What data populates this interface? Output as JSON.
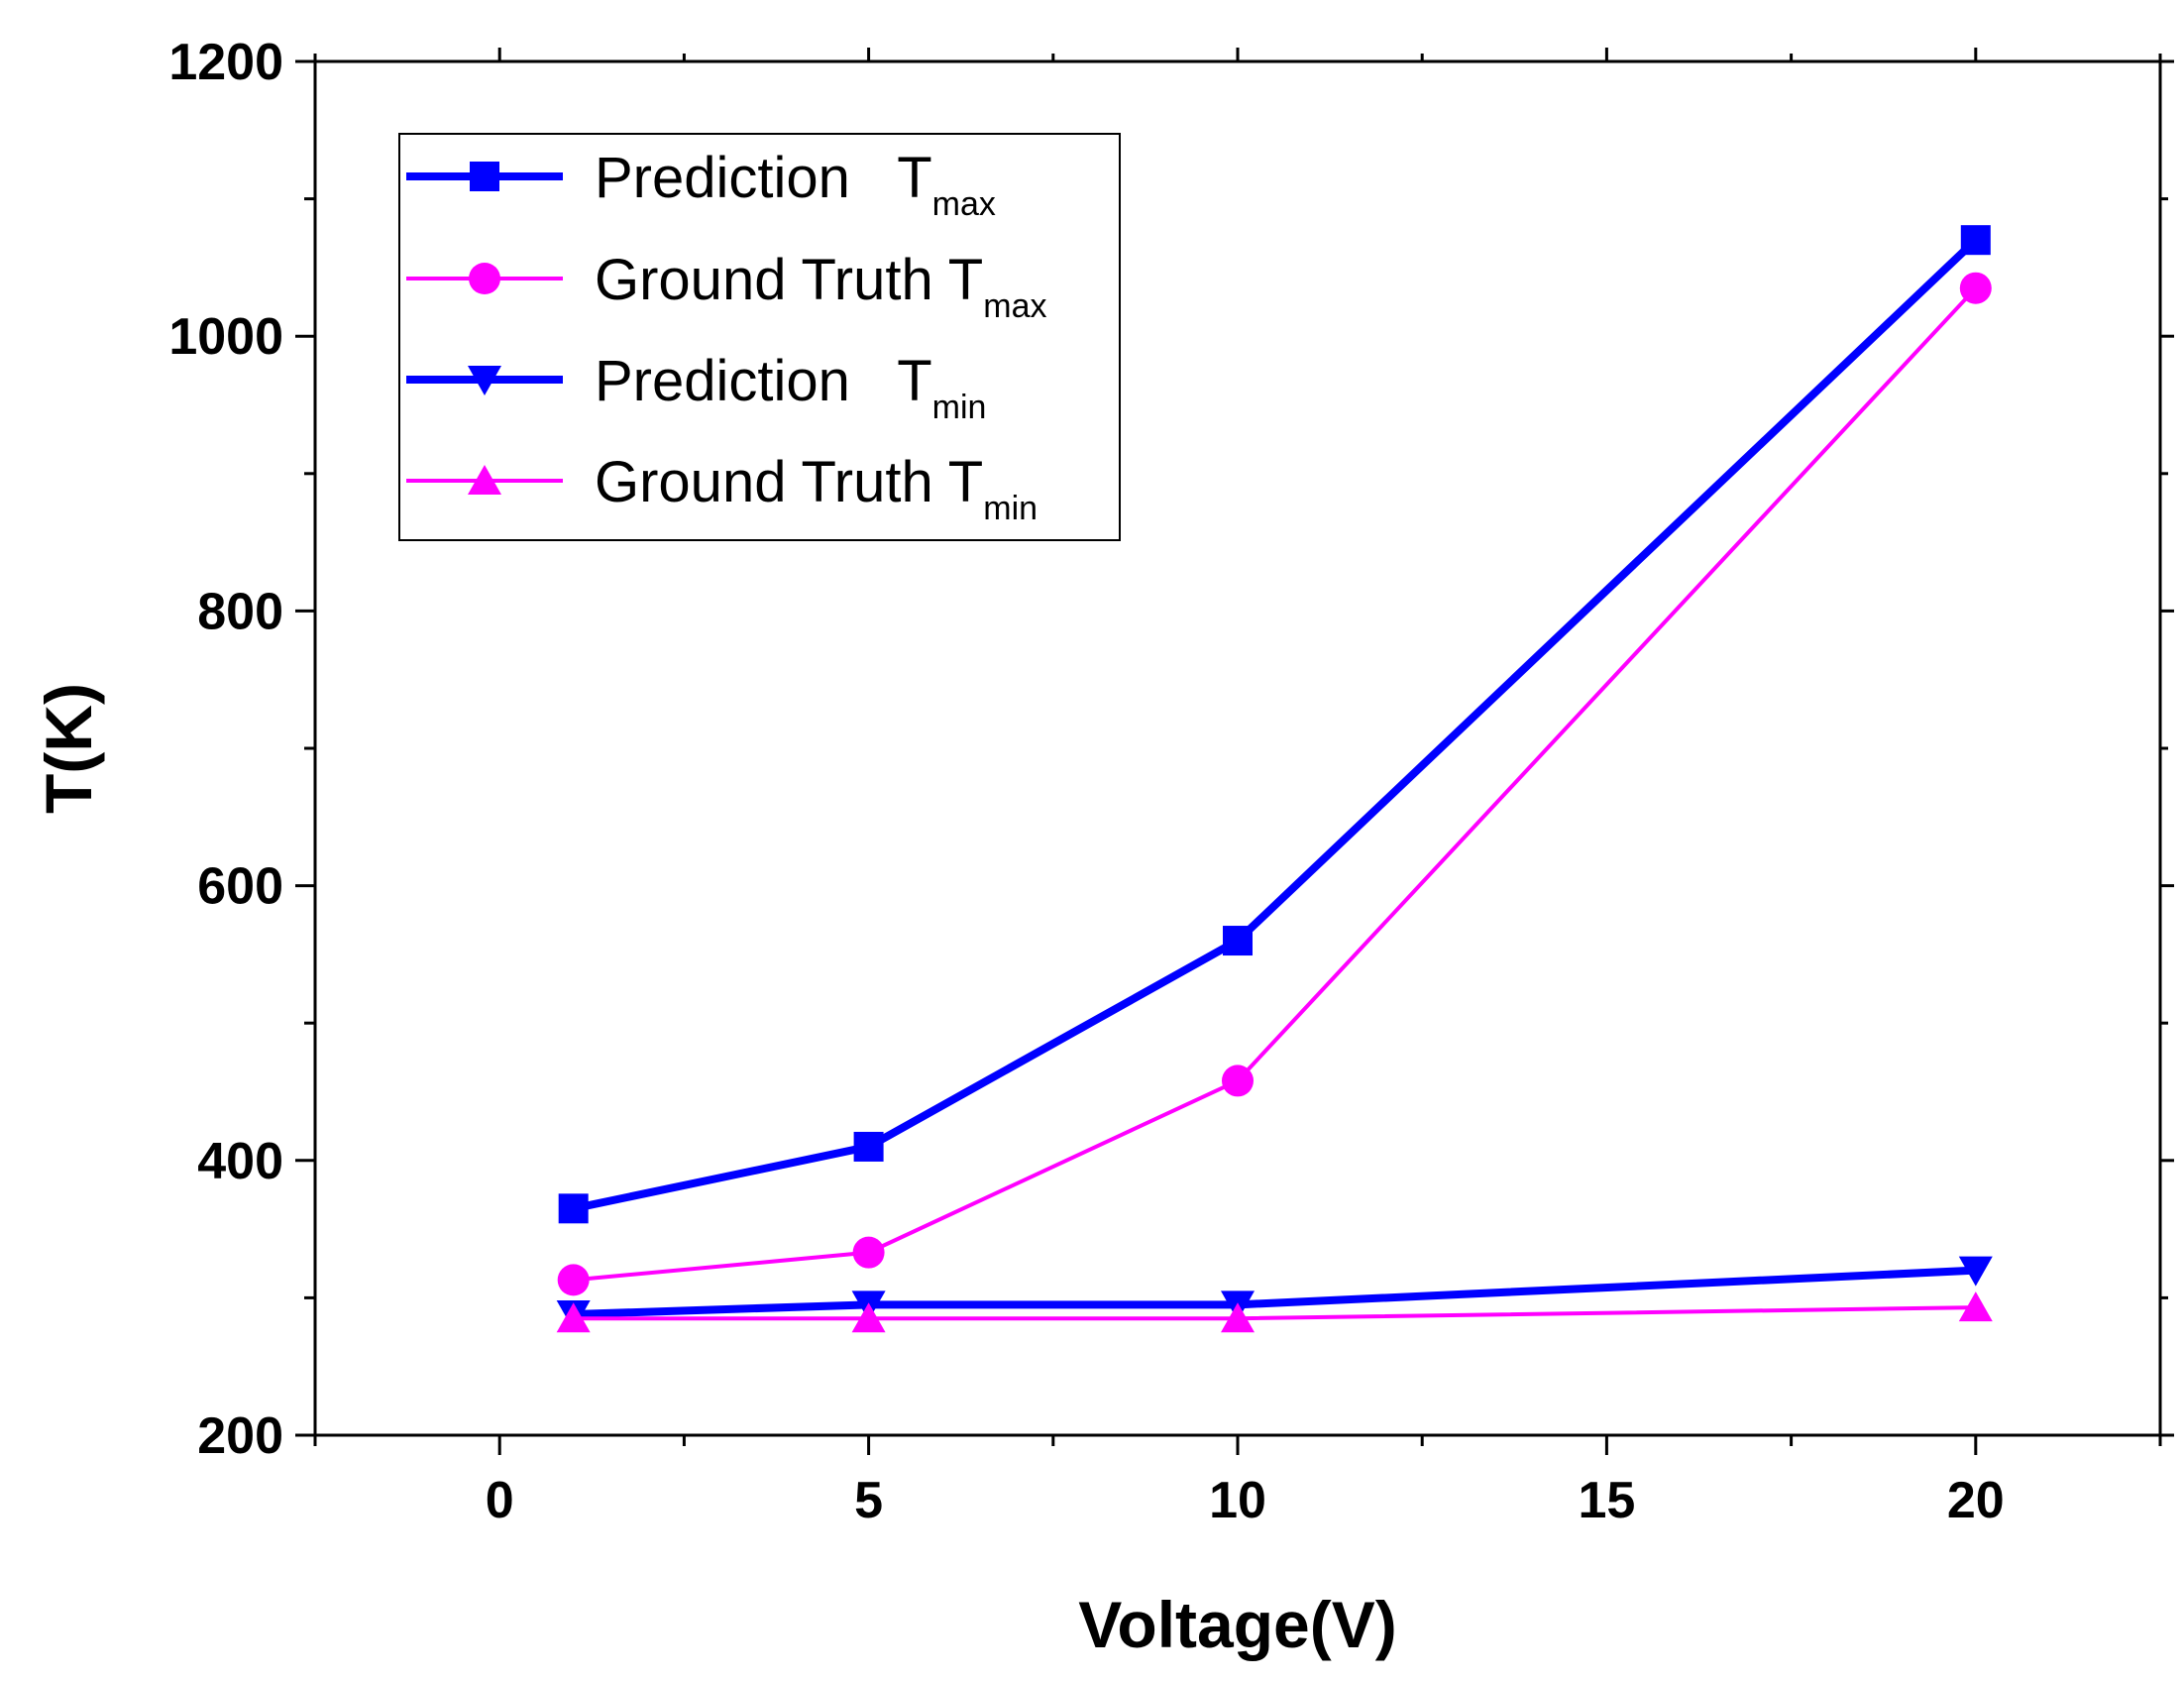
{
  "chart_data": {
    "type": "line",
    "title": "",
    "xlabel": "Voltage(V)",
    "ylabel": "T(K)",
    "xlim": [
      -2.5,
      22.5
    ],
    "ylim": [
      200,
      1200
    ],
    "xticks": [
      0,
      5,
      10,
      15,
      20
    ],
    "yticks": [
      200,
      400,
      600,
      800,
      1000,
      1200
    ],
    "x": [
      1,
      5,
      10,
      20
    ],
    "legend_position": "top-left",
    "series": [
      {
        "name": "Prediction Tmax",
        "label_main": "Prediction   T",
        "label_sub": "max",
        "color": "#0000ff",
        "marker": "square",
        "line": "thick",
        "values": [
          365,
          410,
          560,
          1070
        ]
      },
      {
        "name": "Ground Truth Tmax",
        "label_main": "Ground Truth T",
        "label_sub": "max",
        "color": "#ff00ff",
        "marker": "circle",
        "line": "thin",
        "values": [
          313,
          333,
          458,
          1035
        ]
      },
      {
        "name": "Prediction Tmin",
        "label_main": "Prediction   T",
        "label_sub": "min",
        "color": "#0000ff",
        "marker": "triangle-down",
        "line": "thick",
        "values": [
          288,
          295,
          295,
          320
        ]
      },
      {
        "name": "Ground Truth Tmin",
        "label_main": "Ground Truth T",
        "label_sub": "min",
        "color": "#ff00ff",
        "marker": "triangle-up",
        "line": "thin",
        "values": [
          285,
          285,
          285,
          293
        ]
      }
    ]
  }
}
